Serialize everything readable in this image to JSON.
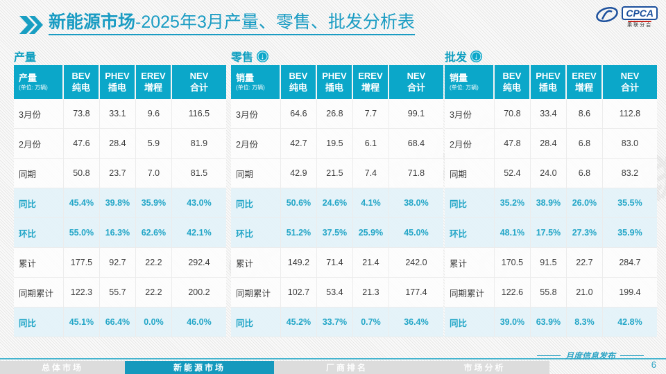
{
  "title": {
    "bold": "新能源市场",
    "rest": "-2025年3月产量、零售、批发分析表"
  },
  "logo": {
    "cpca": "CPCA",
    "sub": "乘联分会",
    "watermark": "CPCA 乘联分会"
  },
  "icons": {
    "arrow_down": "↓"
  },
  "colors": {
    "teal_header": "#0ba7c9",
    "teal_title": "#1a9cc3",
    "highlight_row_bg": "#e4f2f9",
    "highlight_text": "#23a6c7",
    "active_tab": "#1599bd",
    "logo_blue": "#1b4f9c"
  },
  "tables": [
    {
      "section_label": "产量",
      "has_arrow": false,
      "header_label": "产量",
      "unit": "(单位: 万辆)",
      "columns": [
        {
          "en": "BEV",
          "zh": "纯电"
        },
        {
          "en": "PHEV",
          "zh": "插电"
        },
        {
          "en": "EREV",
          "zh": "增程"
        },
        {
          "en": "NEV",
          "zh": "合计"
        }
      ],
      "rows": [
        {
          "label": "3月份",
          "values": [
            "73.8",
            "33.1",
            "9.6",
            "116.5"
          ],
          "highlight": false
        },
        {
          "label": "2月份",
          "values": [
            "47.6",
            "28.4",
            "5.9",
            "81.9"
          ],
          "highlight": false
        },
        {
          "label": "同期",
          "values": [
            "50.8",
            "23.7",
            "7.0",
            "81.5"
          ],
          "highlight": false
        },
        {
          "label": "同比",
          "values": [
            "45.4%",
            "39.8%",
            "35.9%",
            "43.0%"
          ],
          "highlight": true
        },
        {
          "label": "环比",
          "values": [
            "55.0%",
            "16.3%",
            "62.6%",
            "42.1%"
          ],
          "highlight": true
        },
        {
          "label": "累计",
          "values": [
            "177.5",
            "92.7",
            "22.2",
            "292.4"
          ],
          "highlight": false
        },
        {
          "label": "同期累计",
          "values": [
            "122.3",
            "55.7",
            "22.2",
            "200.2"
          ],
          "highlight": false
        },
        {
          "label": "同比",
          "values": [
            "45.1%",
            "66.4%",
            "0.0%",
            "46.0%"
          ],
          "highlight": true
        }
      ]
    },
    {
      "section_label": "零售",
      "has_arrow": true,
      "header_label": "销量",
      "unit": "(单位: 万辆)",
      "columns": [
        {
          "en": "BEV",
          "zh": "纯电"
        },
        {
          "en": "PHEV",
          "zh": "插电"
        },
        {
          "en": "EREV",
          "zh": "增程"
        },
        {
          "en": "NEV",
          "zh": "合计"
        }
      ],
      "rows": [
        {
          "label": "3月份",
          "values": [
            "64.6",
            "26.8",
            "7.7",
            "99.1"
          ],
          "highlight": false
        },
        {
          "label": "2月份",
          "values": [
            "42.7",
            "19.5",
            "6.1",
            "68.4"
          ],
          "highlight": false
        },
        {
          "label": "同期",
          "values": [
            "42.9",
            "21.5",
            "7.4",
            "71.8"
          ],
          "highlight": false
        },
        {
          "label": "同比",
          "values": [
            "50.6%",
            "24.6%",
            "4.1%",
            "38.0%"
          ],
          "highlight": true
        },
        {
          "label": "环比",
          "values": [
            "51.2%",
            "37.5%",
            "25.9%",
            "45.0%"
          ],
          "highlight": true
        },
        {
          "label": "累计",
          "values": [
            "149.2",
            "71.4",
            "21.4",
            "242.0"
          ],
          "highlight": false
        },
        {
          "label": "同期累计",
          "values": [
            "102.7",
            "53.4",
            "21.3",
            "177.4"
          ],
          "highlight": false
        },
        {
          "label": "同比",
          "values": [
            "45.2%",
            "33.7%",
            "0.7%",
            "36.4%"
          ],
          "highlight": true
        }
      ]
    },
    {
      "section_label": "批发",
      "has_arrow": true,
      "header_label": "销量",
      "unit": "(单位: 万辆)",
      "columns": [
        {
          "en": "BEV",
          "zh": "纯电"
        },
        {
          "en": "PHEV",
          "zh": "插电"
        },
        {
          "en": "EREV",
          "zh": "增程"
        },
        {
          "en": "NEV",
          "zh": "合计"
        }
      ],
      "rows": [
        {
          "label": "3月份",
          "values": [
            "70.8",
            "33.4",
            "8.6",
            "112.8"
          ],
          "highlight": false
        },
        {
          "label": "2月份",
          "values": [
            "47.8",
            "28.4",
            "6.8",
            "83.0"
          ],
          "highlight": false
        },
        {
          "label": "同期",
          "values": [
            "52.4",
            "24.0",
            "6.8",
            "83.2"
          ],
          "highlight": false
        },
        {
          "label": "同比",
          "values": [
            "35.2%",
            "38.9%",
            "26.0%",
            "35.5%"
          ],
          "highlight": true
        },
        {
          "label": "环比",
          "values": [
            "48.1%",
            "17.5%",
            "27.3%",
            "35.9%"
          ],
          "highlight": true
        },
        {
          "label": "累计",
          "values": [
            "170.5",
            "91.5",
            "22.7",
            "284.7"
          ],
          "highlight": false
        },
        {
          "label": "同期累计",
          "values": [
            "122.6",
            "55.8",
            "21.0",
            "199.4"
          ],
          "highlight": false
        },
        {
          "label": "同比",
          "values": [
            "39.0%",
            "63.9%",
            "8.3%",
            "42.8%"
          ],
          "highlight": true
        }
      ]
    }
  ],
  "footer": {
    "tabs": [
      {
        "label": "总体市场",
        "active": false
      },
      {
        "label": "新能源市场",
        "active": true
      },
      {
        "label": "厂商排名",
        "active": false
      },
      {
        "label": "市场分析",
        "active": false
      }
    ],
    "publish_label": "月度信息发布",
    "page_number": "6"
  }
}
